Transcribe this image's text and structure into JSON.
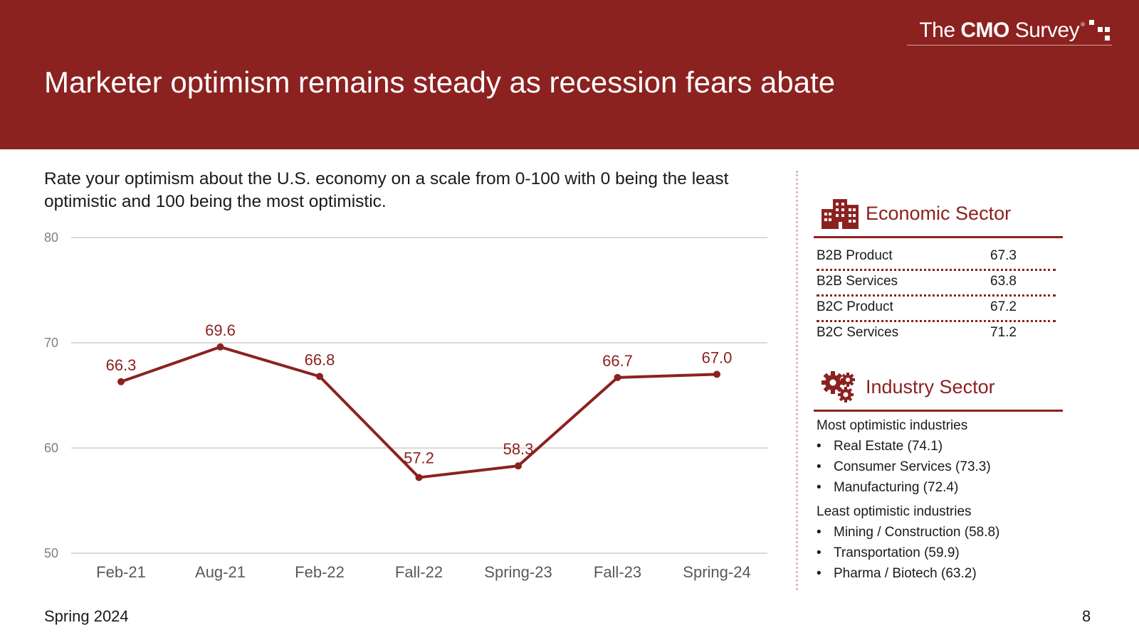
{
  "header": {
    "title": "Marketer optimism remains steady as recession fears abate",
    "logo": {
      "prefix": "The ",
      "bold": "CMO",
      "suffix": " Survey",
      "reg": "®"
    }
  },
  "question": "Rate your optimism about the U.S. economy on a scale from 0-100 with 0 being the least optimistic and 100 being the most optimistic.",
  "chart_data": {
    "type": "line",
    "categories": [
      "Feb-21",
      "Aug-21",
      "Feb-22",
      "Fall-22",
      "Spring-23",
      "Fall-23",
      "Spring-24"
    ],
    "series": [
      {
        "values": [
          66.3,
          69.6,
          66.8,
          57.2,
          58.3,
          66.7,
          67.0
        ],
        "labels": [
          "66.3",
          "69.6",
          "66.8",
          "57.2",
          "58.3",
          "66.7",
          "67.0"
        ]
      }
    ],
    "yticks": [
      "50",
      "60",
      "70",
      "80"
    ],
    "ylim": [
      50,
      80
    ],
    "grid": true,
    "color": "#8b2220"
  },
  "economic": {
    "title": "Economic Sector",
    "icon": "buildings-icon",
    "rows": [
      {
        "name": "B2B Product",
        "value": "67.3"
      },
      {
        "name": "B2B Services",
        "value": "63.8"
      },
      {
        "name": "B2C Product",
        "value": "67.2"
      },
      {
        "name": "B2C Services",
        "value": "71.2"
      }
    ]
  },
  "industry": {
    "title": "Industry Sector",
    "icon": "gears-icon",
    "most_label": "Most optimistic industries",
    "most": [
      "Real Estate (74.1)",
      "Consumer Services (73.3)",
      "Manufacturing (72.4)"
    ],
    "least_label": "Least optimistic industries",
    "least": [
      "Mining / Construction (58.8)",
      "Transportation (59.9)",
      "Pharma / Biotech (63.2)"
    ],
    "bullet": "•"
  },
  "footer": {
    "left": "Spring 2024",
    "page": "8"
  },
  "colors": {
    "brand": "#8b2220",
    "grid": "#d9d9d9",
    "divider": "#e8b8b8"
  }
}
